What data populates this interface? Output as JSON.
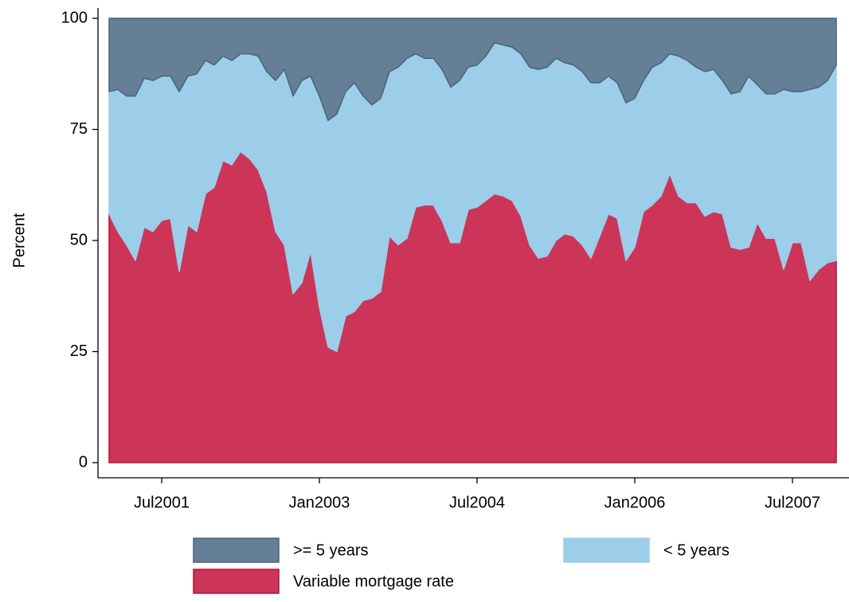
{
  "chart_data": {
    "type": "stacked_area",
    "y_label": "Percent",
    "x": [
      "Jan2001",
      "Feb2001",
      "Mar2001",
      "Apr2001",
      "May2001",
      "Jun2001",
      "Jul2001",
      "Aug2001",
      "Sep2001",
      "Oct2001",
      "Nov2001",
      "Dec2001",
      "Jan2002",
      "Feb2002",
      "Mar2002",
      "Apr2002",
      "May2002",
      "Jun2002",
      "Jul2002",
      "Aug2002",
      "Sep2002",
      "Oct2002",
      "Nov2002",
      "Dec2002",
      "Jan2003",
      "Feb2003",
      "Mar2003",
      "Apr2003",
      "May2003",
      "Jun2003",
      "Jul2003",
      "Aug2003",
      "Sep2003",
      "Oct2003",
      "Nov2003",
      "Dec2003",
      "Jan2004",
      "Feb2004",
      "Mar2004",
      "Apr2004",
      "May2004",
      "Jun2004",
      "Jul2004",
      "Aug2004",
      "Sep2004",
      "Oct2004",
      "Nov2004",
      "Dec2004",
      "Jan2005",
      "Feb2005",
      "Mar2005",
      "Apr2005",
      "May2005",
      "Jun2005",
      "Jul2005",
      "Aug2005",
      "Sep2005",
      "Oct2005",
      "Nov2005",
      "Dec2005",
      "Jan2006",
      "Feb2006",
      "Mar2006",
      "Apr2006",
      "May2006",
      "Jun2006",
      "Jul2006",
      "Aug2006",
      "Sep2006",
      "Oct2006",
      "Nov2006",
      "Dec2006",
      "Jan2007",
      "Feb2007",
      "Mar2007",
      "Apr2007",
      "May2007",
      "Jun2007",
      "Jul2007",
      "Aug2007",
      "Sep2007",
      "Oct2007",
      "Nov2007",
      "Dec2007"
    ],
    "series": [
      {
        "name": "Variable mortgage rate",
        "color": "#cc3558",
        "stroke": "#b0103a",
        "values": [
          56,
          52,
          49,
          45.5,
          53,
          52,
          54.5,
          55,
          43,
          53.5,
          52,
          60.5,
          62,
          68,
          67,
          70,
          68.5,
          66,
          61,
          52,
          49,
          38,
          40.5,
          47.5,
          35,
          26,
          25,
          33,
          34,
          36.5,
          37,
          38.5,
          51,
          49,
          50.5,
          57.5,
          58,
          58,
          54.5,
          49.5,
          49.5,
          57,
          57.5,
          59,
          60.5,
          60,
          59,
          55.5,
          49,
          46,
          46.5,
          50,
          51.5,
          51,
          49,
          46,
          51,
          56,
          55,
          45.5,
          48.5,
          56.5,
          58,
          60,
          65,
          60,
          58.5,
          58.5,
          55.5,
          56.5,
          56,
          48.5,
          48,
          48.5,
          54,
          50.5,
          50.5,
          43.5,
          49.5,
          49.5,
          41,
          43.5,
          45,
          45.5
        ]
      },
      {
        "name": "< 5 years",
        "color": "#9ccde9",
        "stroke": "#9ccde9",
        "values": [
          27.5,
          32,
          33.5,
          37,
          33.5,
          34,
          32.5,
          32,
          40.5,
          33.5,
          35.5,
          30,
          27.5,
          23.5,
          23.5,
          22,
          23.5,
          25.5,
          27,
          34,
          39.5,
          44.5,
          45.5,
          39.5,
          47.5,
          51,
          53.5,
          50.5,
          51.5,
          46,
          43.5,
          43.5,
          37,
          40,
          40.5,
          34.5,
          33,
          33,
          34,
          35,
          36.5,
          32,
          32,
          32.5,
          34,
          34,
          34.5,
          36.5,
          40,
          42.5,
          42.5,
          41,
          38.5,
          38.5,
          39,
          39.5,
          34.5,
          31,
          30.5,
          35.5,
          33.5,
          29.5,
          31,
          30,
          27,
          31.5,
          32,
          30.5,
          32.5,
          32,
          30,
          34.5,
          35.5,
          38.5,
          31,
          32.5,
          32.5,
          40.5,
          34,
          34,
          43,
          41,
          41,
          44
        ]
      },
      {
        "name": ">= 5 years",
        "color": "#647f96",
        "stroke": "#4a6478",
        "values": [
          16.5,
          16,
          17.5,
          17.5,
          13.5,
          14,
          13,
          13,
          16.5,
          13,
          12.5,
          9.5,
          10.5,
          8.5,
          9.5,
          8,
          8,
          8.5,
          12,
          14,
          11.5,
          17.5,
          14,
          13,
          17.5,
          23,
          21.5,
          16.5,
          14.5,
          17.5,
          19.5,
          18,
          12,
          11,
          9,
          8,
          9,
          9,
          11.5,
          15.5,
          14,
          11,
          10.5,
          8.5,
          5.5,
          6,
          6.5,
          8,
          11,
          11.5,
          11,
          9,
          10,
          10.5,
          12,
          14.5,
          14.5,
          13,
          14.5,
          19,
          18,
          14,
          11,
          10,
          8,
          8.5,
          9.5,
          11,
          12,
          11.5,
          14,
          17,
          16.5,
          13,
          15,
          17,
          17,
          16,
          16.5,
          16.5,
          16,
          15.5,
          14,
          10.5
        ]
      }
    ],
    "ylim": [
      0,
      100
    ],
    "yticks": [
      0,
      25,
      50,
      75,
      100
    ],
    "xticks": [
      "Jul2001",
      "Jan2003",
      "Jul2004",
      "Jan2006",
      "Jul2007"
    ]
  }
}
